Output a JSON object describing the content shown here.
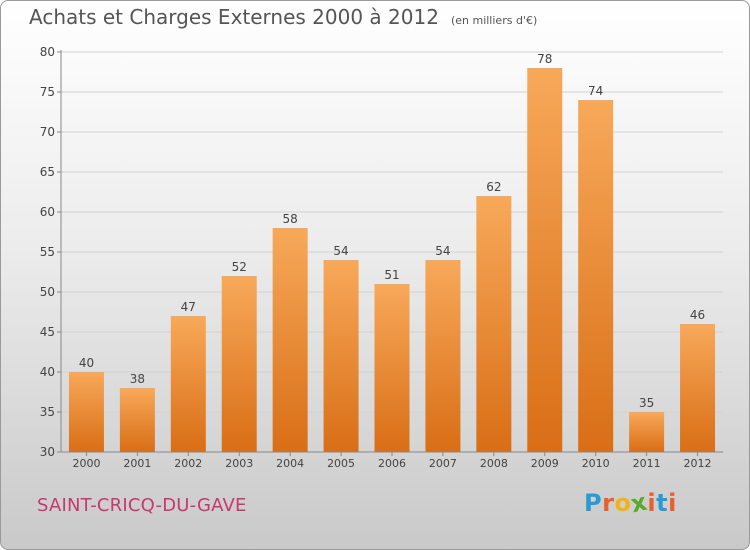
{
  "chart_data": {
    "type": "bar",
    "title": "Achats et Charges Externes 2000 à 2012",
    "unit_label": "(en milliers d'€)",
    "categories": [
      "2000",
      "2001",
      "2002",
      "2003",
      "2004",
      "2005",
      "2006",
      "2007",
      "2008",
      "2009",
      "2010",
      "2011",
      "2012"
    ],
    "values": [
      40,
      38,
      47,
      52,
      58,
      54,
      51,
      54,
      62,
      78,
      74,
      35,
      46
    ],
    "ylim": [
      30,
      80
    ],
    "yticks": [
      30,
      35,
      40,
      45,
      50,
      55,
      60,
      65,
      70,
      75,
      80
    ],
    "xlabel": "",
    "ylabel": "",
    "grid": true,
    "bar_color_top": "#f7a95a",
    "bar_color_bottom": "#d96e16"
  },
  "footer": {
    "commune": "SAINT-CRICQ-DU-GAVE",
    "logo_text": "Proxiti",
    "logo_colors": [
      "#2a9ad6",
      "#e8612c",
      "#f0b418",
      "#5aaa2a",
      "#e8612c",
      "#2a9ad6",
      "#e8612c"
    ]
  },
  "colors": {
    "commune_text": "#c8386e",
    "title_text": "#555555"
  }
}
